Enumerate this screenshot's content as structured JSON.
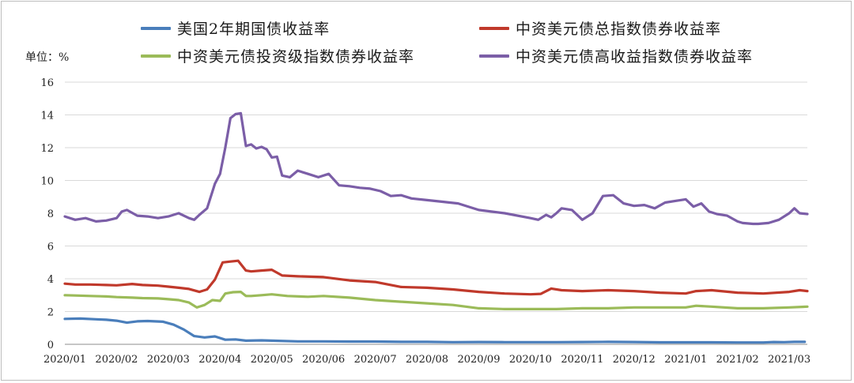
{
  "chart_data": {
    "type": "line",
    "ylabel": "单位：%",
    "ylim": [
      0,
      16
    ],
    "yticks": [
      "0",
      "2",
      "4",
      "6",
      "8",
      "10",
      "12",
      "14",
      "16"
    ],
    "x_tick_labels": [
      "2020/01",
      "2020/02",
      "2020/03",
      "2020/04",
      "2020/05",
      "2020/06",
      "2020/07",
      "2020/08",
      "2020/09",
      "2020/10",
      "2020/11",
      "2020/12",
      "2021/01",
      "2021/02",
      "2021/03"
    ],
    "x_range": [
      0,
      14.35
    ],
    "grid": "horizontal",
    "legend_position": "top",
    "series": [
      {
        "name": "美国2年期国债收益率",
        "color": "#4a7ebb",
        "x": [
          0,
          0.3,
          0.6,
          0.8,
          1.0,
          1.2,
          1.4,
          1.6,
          1.9,
          2.1,
          2.3,
          2.5,
          2.7,
          2.9,
          3.1,
          3.3,
          3.5,
          3.8,
          4.0,
          4.5,
          5.0,
          5.5,
          6.0,
          6.5,
          7.0,
          7.5,
          8.0,
          8.5,
          9.0,
          9.5,
          10.0,
          10.5,
          11.0,
          11.5,
          12.0,
          12.5,
          13.0,
          13.5,
          13.7,
          13.9,
          14.1,
          14.3
        ],
        "values": [
          1.55,
          1.57,
          1.53,
          1.5,
          1.44,
          1.32,
          1.4,
          1.42,
          1.38,
          1.2,
          0.9,
          0.5,
          0.42,
          0.48,
          0.28,
          0.3,
          0.22,
          0.24,
          0.22,
          0.18,
          0.18,
          0.17,
          0.17,
          0.15,
          0.15,
          0.13,
          0.14,
          0.13,
          0.13,
          0.13,
          0.14,
          0.15,
          0.14,
          0.12,
          0.12,
          0.12,
          0.11,
          0.11,
          0.14,
          0.13,
          0.15,
          0.15
        ]
      },
      {
        "name": "中资美元债总指数债券收益率",
        "color": "#c0392b",
        "x": [
          0,
          0.2,
          0.5,
          0.8,
          1.0,
          1.3,
          1.5,
          1.8,
          2.0,
          2.2,
          2.4,
          2.6,
          2.75,
          2.9,
          3.05,
          3.2,
          3.35,
          3.5,
          3.6,
          3.8,
          4.0,
          4.2,
          4.5,
          5.0,
          5.5,
          6.0,
          6.5,
          7.0,
          7.5,
          8.0,
          8.5,
          9.0,
          9.2,
          9.4,
          9.6,
          10.0,
          10.5,
          11.0,
          11.5,
          12.0,
          12.2,
          12.5,
          13.0,
          13.5,
          14.0,
          14.2,
          14.35
        ],
        "values": [
          3.7,
          3.65,
          3.65,
          3.62,
          3.6,
          3.68,
          3.62,
          3.58,
          3.52,
          3.45,
          3.38,
          3.2,
          3.35,
          3.95,
          5.0,
          5.05,
          5.1,
          4.5,
          4.45,
          4.5,
          4.55,
          4.2,
          4.15,
          4.1,
          3.9,
          3.8,
          3.5,
          3.45,
          3.35,
          3.2,
          3.1,
          3.05,
          3.08,
          3.4,
          3.3,
          3.25,
          3.3,
          3.25,
          3.15,
          3.1,
          3.25,
          3.3,
          3.15,
          3.1,
          3.2,
          3.3,
          3.25
        ]
      },
      {
        "name": "中资美元债投资级指数债券收益率",
        "color": "#9bbb59",
        "x": [
          0,
          0.2,
          0.5,
          0.8,
          1.0,
          1.3,
          1.5,
          1.8,
          2.0,
          2.2,
          2.4,
          2.55,
          2.7,
          2.85,
          3.0,
          3.1,
          3.25,
          3.4,
          3.5,
          3.6,
          3.8,
          4.0,
          4.3,
          4.7,
          5.0,
          5.5,
          6.0,
          6.5,
          7.0,
          7.5,
          8.0,
          8.5,
          9.0,
          9.5,
          10.0,
          10.5,
          11.0,
          11.5,
          12.0,
          12.2,
          12.5,
          13.0,
          13.5,
          14.0,
          14.35
        ],
        "values": [
          3.0,
          2.98,
          2.95,
          2.92,
          2.88,
          2.85,
          2.82,
          2.8,
          2.75,
          2.7,
          2.55,
          2.25,
          2.4,
          2.7,
          2.65,
          3.1,
          3.18,
          3.2,
          2.95,
          2.95,
          3.0,
          3.05,
          2.95,
          2.9,
          2.95,
          2.85,
          2.7,
          2.6,
          2.5,
          2.4,
          2.2,
          2.15,
          2.15,
          2.15,
          2.2,
          2.2,
          2.25,
          2.25,
          2.25,
          2.35,
          2.3,
          2.2,
          2.2,
          2.25,
          2.3
        ]
      },
      {
        "name": "中资美元债高收益指数债券收益率",
        "color": "#7b5ea7",
        "x": [
          0,
          0.2,
          0.4,
          0.6,
          0.8,
          1.0,
          1.1,
          1.2,
          1.4,
          1.6,
          1.8,
          2.0,
          2.2,
          2.4,
          2.5,
          2.6,
          2.75,
          2.9,
          3.0,
          3.1,
          3.2,
          3.3,
          3.4,
          3.5,
          3.6,
          3.7,
          3.8,
          3.9,
          4.0,
          4.1,
          4.2,
          4.35,
          4.5,
          4.7,
          4.9,
          5.1,
          5.3,
          5.5,
          5.7,
          5.9,
          6.1,
          6.3,
          6.5,
          6.7,
          7.0,
          7.3,
          7.6,
          8.0,
          8.5,
          9.0,
          9.15,
          9.3,
          9.4,
          9.5,
          9.6,
          9.8,
          10.0,
          10.2,
          10.4,
          10.6,
          10.8,
          11.0,
          11.2,
          11.4,
          11.6,
          11.8,
          12.0,
          12.15,
          12.3,
          12.45,
          12.6,
          12.8,
          13.0,
          13.1,
          13.3,
          13.4,
          13.6,
          13.8,
          14.0,
          14.1,
          14.2,
          14.35
        ],
        "values": [
          7.8,
          7.6,
          7.7,
          7.5,
          7.55,
          7.7,
          8.1,
          8.2,
          7.85,
          7.8,
          7.7,
          7.8,
          8.0,
          7.7,
          7.6,
          7.9,
          8.3,
          9.8,
          10.4,
          12.0,
          13.8,
          14.05,
          14.1,
          12.1,
          12.2,
          11.95,
          12.05,
          11.9,
          11.4,
          11.45,
          10.3,
          10.2,
          10.6,
          10.4,
          10.2,
          10.4,
          9.7,
          9.65,
          9.55,
          9.5,
          9.35,
          9.05,
          9.1,
          8.9,
          8.8,
          8.7,
          8.6,
          8.2,
          8.0,
          7.7,
          7.6,
          7.9,
          7.75,
          8.0,
          8.3,
          8.2,
          7.6,
          8.0,
          9.05,
          9.1,
          8.6,
          8.45,
          8.5,
          8.3,
          8.65,
          8.75,
          8.85,
          8.4,
          8.6,
          8.1,
          7.95,
          7.85,
          7.5,
          7.4,
          7.35,
          7.35,
          7.4,
          7.6,
          8.0,
          8.3,
          8.0,
          7.95
        ]
      }
    ]
  }
}
